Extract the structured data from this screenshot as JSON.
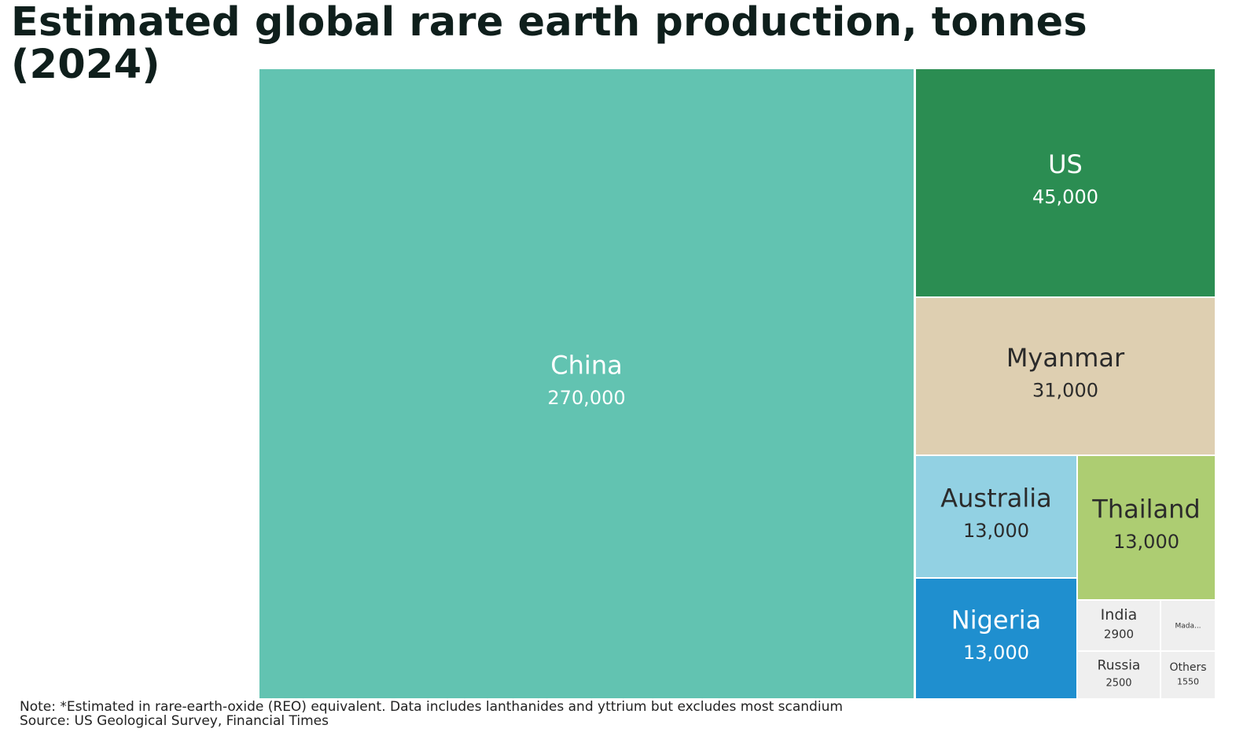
{
  "title": "Estimated global rare earth production, tonnes (2024)",
  "chart_data": {
    "type": "treemap",
    "title": "Estimated global rare earth production, tonnes (2024)",
    "units": "tonnes",
    "items": [
      {
        "name": "China",
        "value": 270000,
        "value_label": "270,000",
        "color": "#62c3b1",
        "text_color": "#ffffff"
      },
      {
        "name": "US",
        "value": 45000,
        "value_label": "45,000",
        "color": "#2b8d52",
        "text_color": "#ffffff"
      },
      {
        "name": "Myanmar",
        "value": 31000,
        "value_label": "31,000",
        "color": "#decfb1",
        "text_color": "#2b2b2b"
      },
      {
        "name": "Australia",
        "value": 13000,
        "value_label": "13,000",
        "color": "#92d1e3",
        "text_color": "#2b2b2b"
      },
      {
        "name": "Thailand",
        "value": 13000,
        "value_label": "13,000",
        "color": "#adcd72",
        "text_color": "#2b2b2b"
      },
      {
        "name": "Nigeria",
        "value": 13000,
        "value_label": "13,000",
        "color": "#1f8fcf",
        "text_color": "#ffffff"
      },
      {
        "name": "India",
        "value": 2900,
        "value_label": "2900",
        "color": "#efefef",
        "text_color": "#333333"
      },
      {
        "name": "Mada...",
        "value": null,
        "value_label": "",
        "color": "#efefef",
        "text_color": "#333333"
      },
      {
        "name": "Russia",
        "value": 2500,
        "value_label": "2500",
        "color": "#efefef",
        "text_color": "#333333"
      },
      {
        "name": "Others",
        "value": 1550,
        "value_label": "1550",
        "color": "#efefef",
        "text_color": "#333333"
      }
    ]
  },
  "footer": {
    "note": "Note: *Estimated in rare-earth-oxide (REO) equivalent. Data includes lanthanides and yttrium but excludes most scandium",
    "source": "Source: US Geological Survey, Financial Times"
  }
}
